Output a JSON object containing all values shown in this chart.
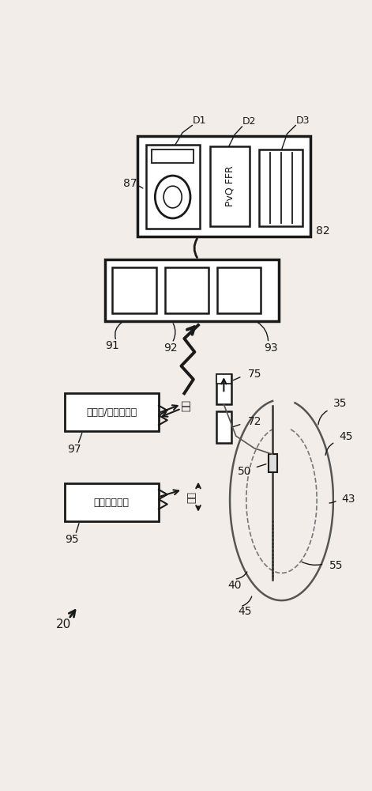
{
  "bg_color": "#f2ede8",
  "line_color": "#1a1a1a",
  "labels": {
    "D1": "D1",
    "D2": "D2",
    "D3": "D3",
    "87": "87",
    "82": "82",
    "91": "91",
    "92": "92",
    "93": "93",
    "97": "97",
    "95": "95",
    "75": "75",
    "72": "72",
    "20": "20",
    "35": "35",
    "40": "40",
    "43": "43",
    "45a": "45",
    "45b": "45",
    "50": "50",
    "55": "55",
    "pvq_ffr": "P v Q  FFR",
    "box97_text": "血管外/室内传感器",
    "box95_text": "血管造影系统",
    "jin_ce": "近侧",
    "yuan_ce": "远侧"
  },
  "fig_width": 4.71,
  "fig_height": 10.0,
  "dpi": 100
}
